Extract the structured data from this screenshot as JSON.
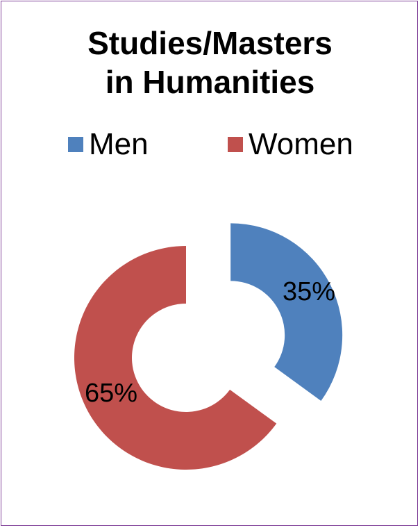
{
  "chart_data": {
    "type": "pie",
    "title_lines": [
      "Studies/Masters",
      "in Humanities"
    ],
    "legend_position": "top",
    "categories": [
      "Men",
      "Women"
    ],
    "values": [
      35,
      65
    ],
    "value_labels": [
      "35%",
      "65%"
    ],
    "colors": [
      "#4f81bd",
      "#c0504d"
    ]
  }
}
